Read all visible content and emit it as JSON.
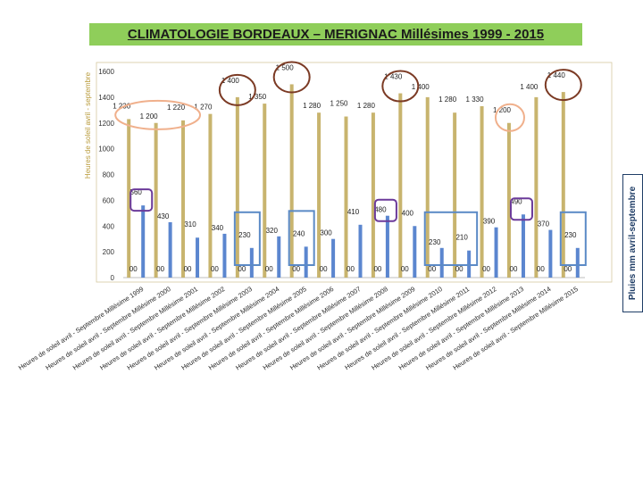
{
  "page": {
    "title": "CLIMATOLOGIE  BORDEAUX – MERIGNAC  Millésimes 1999 - 2015",
    "right_label": "Pluies mm  avril-septembre"
  },
  "chart_data": {
    "type": "bar",
    "title": "CLIMATOLOGIE  BORDEAUX – MERIGNAC  Millésimes 1999 - 2015",
    "ylabel": "Heures de soleil avril - septembre",
    "ylim": [
      0,
      1600
    ],
    "yticks": [
      0,
      200,
      400,
      600,
      800,
      1000,
      1200,
      1400,
      1600
    ],
    "grid": false,
    "category_prefix": "Heures de soleil avril - Septembre Millésime",
    "categories": [
      "1999",
      "2000",
      "2001",
      "2002",
      "2003",
      "2004",
      "2005",
      "2006",
      "2007",
      "2008",
      "2009",
      "2010",
      "2011",
      "2012",
      "2013",
      "2014",
      "2015"
    ],
    "series": [
      {
        "name": "Heures de soleil avril - septembre",
        "color": "#c8b46e",
        "values": [
          1230,
          1200,
          1220,
          1270,
          1400,
          1350,
          1500,
          1280,
          1250,
          1280,
          1430,
          1400,
          1280,
          1330,
          1200,
          1400,
          1440
        ],
        "labels": [
          "1 230",
          "1 200",
          "1 220",
          "1 270",
          "1 400",
          "1 350",
          "1 500",
          "1 280",
          "1 250",
          "1 280",
          "1 430",
          "1 400",
          "1 280",
          "1 330",
          "1 200",
          "1 400",
          "1 440"
        ]
      },
      {
        "name": "Pluies mm avril-septembre",
        "color": "#5b86cf",
        "values": [
          560,
          430,
          310,
          340,
          230,
          320,
          240,
          300,
          410,
          480,
          400,
          230,
          210,
          390,
          490,
          370,
          230
        ],
        "labels": [
          "560",
          "430",
          "310",
          "340",
          "230",
          "320",
          "240",
          "300",
          "410",
          "480",
          "400",
          "230",
          "210",
          "390",
          "490",
          "370",
          "230"
        ]
      }
    ],
    "baseline_marker": "00",
    "annotations": {
      "high_sun_circled": [
        "2003",
        "2005",
        "2009",
        "2015"
      ],
      "low_sun_circled": [
        "1999",
        "2000",
        "2001",
        "2013"
      ],
      "high_rain_boxed": [
        "1999",
        "2008",
        "2013"
      ],
      "low_rain_boxed": [
        "2003",
        "2005",
        "2010",
        "2011",
        "2015"
      ],
      "colors": {
        "high_sun": "#7b3a24",
        "low_sun": "#f0b08c",
        "high_rain": "#6b3a9a",
        "low_rain": "#5b8ac6"
      }
    }
  }
}
